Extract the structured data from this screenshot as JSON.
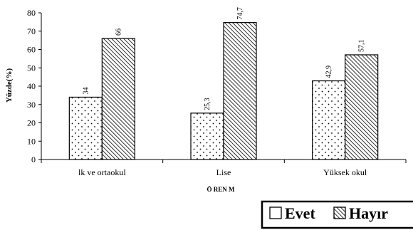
{
  "chart_data": {
    "type": "bar",
    "categories": [
      "lk ve ortaokul",
      "Lise",
      "Yüksek okul"
    ],
    "series": [
      {
        "name": "Evet",
        "values": [
          34,
          25.3,
          42.9
        ],
        "labels": [
          "34",
          "25,3",
          "42,9"
        ],
        "pattern": "dots"
      },
      {
        "name": "Hayır",
        "values": [
          66,
          74.7,
          57.1
        ],
        "labels": [
          "66",
          "74,7",
          "57,1"
        ],
        "pattern": "diagonal-hatch"
      }
    ],
    "ylim": [
      0,
      80
    ],
    "yticks": [
      0,
      10,
      20,
      30,
      40,
      50,
      60,
      70,
      80
    ],
    "ylabel": "Yüzde(%)",
    "xlabel": "Ö REN M",
    "grid": false,
    "legend_position": "bottom-right"
  }
}
